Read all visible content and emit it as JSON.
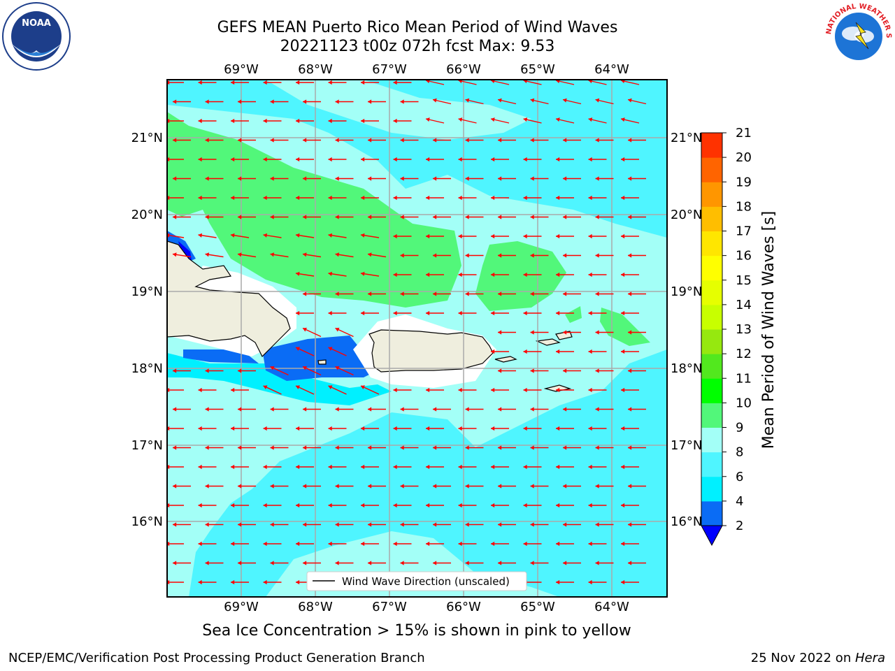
{
  "header": {
    "title_line1": "GEFS MEAN Puerto Rico Mean Period of Wind Waves",
    "title_line2": "20221123 t00z 072h fcst   Max: 9.53"
  },
  "map": {
    "lon_labels": [
      "69°W",
      "68°W",
      "67°W",
      "66°W",
      "65°W",
      "64°W"
    ],
    "lat_labels": [
      "21°N",
      "20°N",
      "19°N",
      "18°N",
      "17°N",
      "16°N"
    ],
    "legend_label": "Wind Wave Direction (unscaled)",
    "field_colors": {
      "2-4": "#0a6cf5",
      "4-6": "#00f0ff",
      "6-8": "#4ff5ff",
      "8-9": "#a3fff7",
      "9-10": "#52f77a",
      "land": "#efeede",
      "arrow": "#ff0000"
    }
  },
  "colorbar": {
    "label": "Mean Period of Wind Waves [s]",
    "ticks": [
      "2",
      "4",
      "6",
      "8",
      "9",
      "10",
      "11",
      "12",
      "13",
      "14",
      "15",
      "16",
      "17",
      "18",
      "19",
      "20",
      "21"
    ],
    "colors": [
      "#0a6cf5",
      "#00f0ff",
      "#4ff5ff",
      "#a3fff7",
      "#52f77a",
      "#00ff00",
      "#52e81e",
      "#96e80f",
      "#c8ff00",
      "#e6ff00",
      "#ffff00",
      "#ffe600",
      "#ffbe00",
      "#ff9600",
      "#ff6400",
      "#ff3200",
      "#ff0000"
    ],
    "under_color": "#0000ff"
  },
  "footer": {
    "subtitle": "Sea Ice Concentration > 15% is shown in pink to yellow",
    "left": "NCEP/EMC/Verification Post Processing Product Generation Branch",
    "right_date": "25 Nov 2022 on ",
    "right_host": "Hera"
  },
  "logos": {
    "noaa_text": "NOAA",
    "nws_text": "NATIONAL WEATHER SERVICE"
  }
}
